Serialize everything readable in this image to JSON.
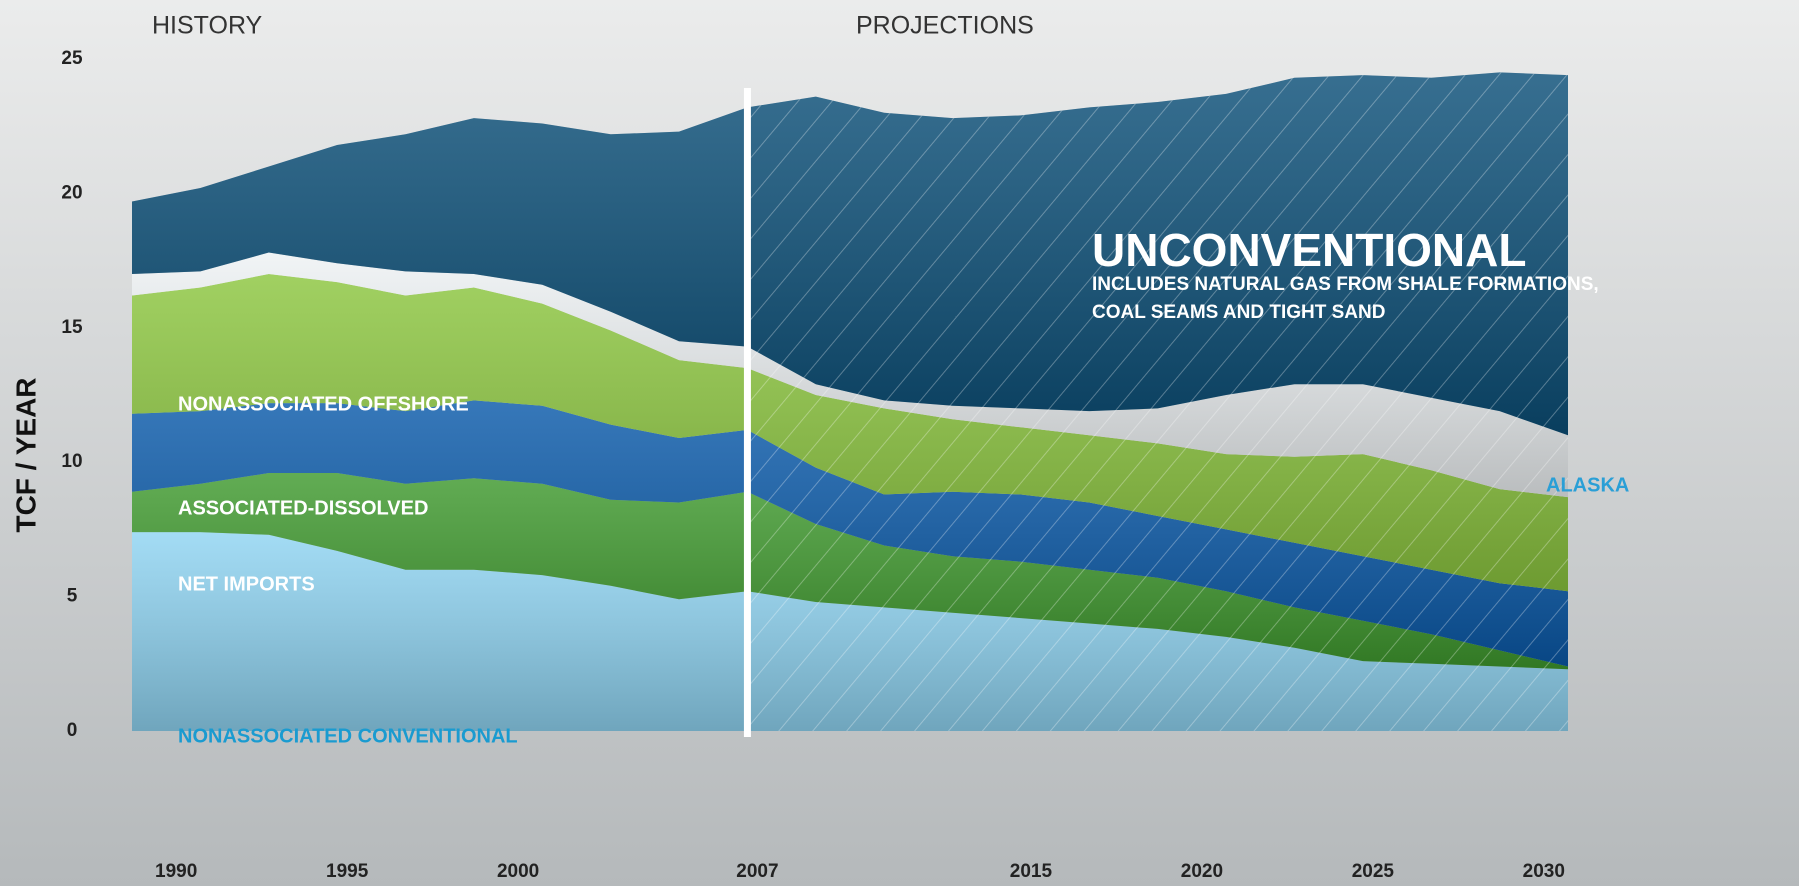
{
  "chart_data": {
    "type": "stacked_area",
    "section_labels": [
      "HISTORY",
      "PROJECTIONS"
    ],
    "split_x": 2007,
    "y_axis_label": "TCF / YEAR",
    "annotation": [
      "INCLUDES NATURAL GAS FROM SHALE FORMATIONS,",
      "COAL SEAMS AND TIGHT SAND"
    ],
    "x": [
      1989,
      1991,
      1993,
      1995,
      1997,
      1999,
      2001,
      2003,
      2005,
      2007,
      2009,
      2011,
      2013,
      2015,
      2017,
      2019,
      2021,
      2023,
      2025,
      2027,
      2029,
      2031
    ],
    "xlim": [
      1989,
      2031
    ],
    "xticks": [
      1990,
      1995,
      2000,
      2007,
      2015,
      2020,
      2025,
      2030
    ],
    "ylim": [
      0,
      25
    ],
    "yticks": [
      0,
      5,
      10,
      15,
      20,
      25
    ],
    "series": [
      {
        "name": "NONASSOCIATED CONVENTIONAL",
        "color": "#8fd4f2",
        "values": [
          7.4,
          7.4,
          7.3,
          6.7,
          6.0,
          6.0,
          5.8,
          5.4,
          4.9,
          5.2,
          4.8,
          4.6,
          4.4,
          4.2,
          4.0,
          3.8,
          3.5,
          3.1,
          2.6,
          2.5,
          2.4,
          2.3
        ]
      },
      {
        "name": "NET IMPORTS",
        "color": "#3f9a2e",
        "values": [
          1.5,
          1.8,
          2.3,
          2.9,
          3.2,
          3.4,
          3.4,
          3.2,
          3.6,
          3.7,
          2.9,
          2.3,
          2.1,
          2.1,
          2.0,
          1.9,
          1.7,
          1.5,
          1.5,
          1.1,
          0.6,
          0.1
        ]
      },
      {
        "name": "ASSOCIATED-DISSOLVED",
        "color": "#0a5aaa",
        "values": [
          2.9,
          2.7,
          2.6,
          2.6,
          2.7,
          2.9,
          2.9,
          2.8,
          2.4,
          2.3,
          2.1,
          1.9,
          2.4,
          2.5,
          2.5,
          2.3,
          2.3,
          2.4,
          2.4,
          2.4,
          2.5,
          2.8
        ]
      },
      {
        "name": "NONASSOCIATED OFFSHORE",
        "color": "#8cc63f",
        "values": [
          4.4,
          4.6,
          4.8,
          4.5,
          4.3,
          4.2,
          3.8,
          3.5,
          2.9,
          2.3,
          2.7,
          3.2,
          2.7,
          2.5,
          2.5,
          2.7,
          2.8,
          3.2,
          3.8,
          3.7,
          3.5,
          3.5
        ]
      },
      {
        "name": "ALASKA",
        "color": "#eef2f4",
        "values": [
          0.8,
          0.6,
          0.8,
          0.7,
          0.9,
          0.5,
          0.7,
          0.7,
          0.7,
          0.8,
          0.4,
          0.3,
          0.5,
          0.7,
          0.9,
          1.3,
          2.2,
          2.7,
          2.6,
          2.7,
          2.9,
          2.3
        ]
      },
      {
        "name": "UNCONVENTIONAL",
        "color": "#0b4f78",
        "values": [
          2.7,
          3.1,
          3.2,
          4.4,
          5.1,
          5.8,
          6.0,
          6.6,
          7.8,
          8.9,
          10.7,
          10.7,
          10.7,
          10.9,
          11.3,
          11.4,
          11.2,
          11.4,
          11.5,
          11.9,
          12.6,
          13.4
        ]
      }
    ]
  }
}
